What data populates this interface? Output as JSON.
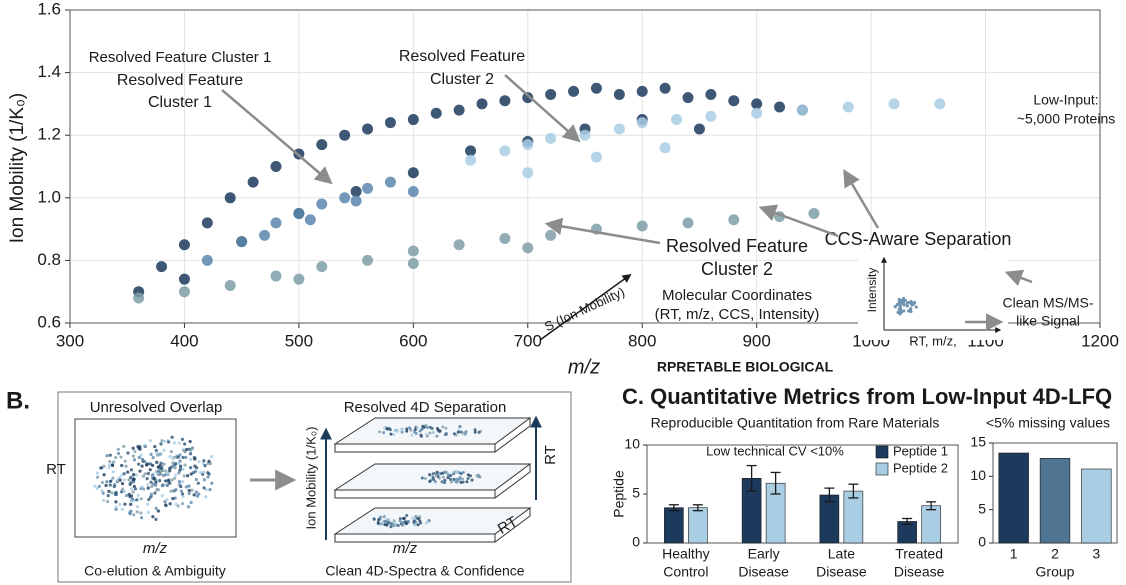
{
  "chart_data": [
    {
      "type": "scatter",
      "xlabel": "m/z",
      "ylabel": "Ion Mobility (1/K₀)",
      "xlim": [
        300,
        1200
      ],
      "ylim": [
        0.6,
        1.6
      ],
      "xticks": [
        300,
        400,
        500,
        600,
        700,
        800,
        900,
        1000,
        1100,
        1200
      ],
      "yticks": [
        0.6,
        0.8,
        {
          "value": 1,
          "label": "1.0"
        },
        1.2,
        1.4,
        1.6
      ],
      "grid": true,
      "series": [
        {
          "color": "#1b3a5c",
          "x": [
            360,
            380,
            400,
            420,
            440,
            460,
            480,
            500,
            520,
            540,
            560,
            580,
            600,
            620,
            640,
            660,
            680,
            700,
            720,
            740,
            760,
            780,
            800,
            820,
            840,
            860,
            880,
            900,
            920,
            940,
            400,
            450,
            500,
            550,
            600,
            650,
            700,
            750,
            800,
            850
          ],
          "y": [
            0.7,
            0.78,
            0.85,
            0.92,
            1.0,
            1.05,
            1.1,
            1.14,
            1.17,
            1.2,
            1.22,
            1.24,
            1.25,
            1.27,
            1.28,
            1.3,
            1.31,
            1.32,
            1.33,
            1.34,
            1.35,
            1.33,
            1.34,
            1.35,
            1.32,
            1.33,
            1.31,
            1.3,
            1.29,
            1.28,
            0.74,
            0.86,
            0.95,
            1.02,
            1.08,
            1.15,
            1.18,
            1.22,
            1.25,
            1.22
          ]
        },
        {
          "color": "#5b86ad",
          "x": [
            420,
            450,
            480,
            500,
            520,
            540,
            560,
            580,
            470,
            510,
            550,
            600
          ],
          "y": [
            0.8,
            0.86,
            0.92,
            0.95,
            0.98,
            1.0,
            1.03,
            1.05,
            0.88,
            0.93,
            0.99,
            1.02
          ]
        },
        {
          "color": "#a9cde3",
          "x": [
            650,
            680,
            700,
            720,
            750,
            780,
            800,
            830,
            860,
            900,
            940,
            980,
            1020,
            1060,
            700,
            760,
            820
          ],
          "y": [
            1.12,
            1.15,
            1.17,
            1.19,
            1.2,
            1.22,
            1.24,
            1.25,
            1.26,
            1.27,
            1.28,
            1.29,
            1.3,
            1.3,
            1.08,
            1.13,
            1.16
          ]
        },
        {
          "color": "#7f9ea8",
          "x": [
            360,
            400,
            440,
            480,
            520,
            560,
            600,
            640,
            680,
            720,
            760,
            800,
            840,
            880,
            920,
            950,
            500,
            600,
            700
          ],
          "y": [
            0.68,
            0.7,
            0.72,
            0.75,
            0.78,
            0.8,
            0.83,
            0.85,
            0.87,
            0.88,
            0.9,
            0.91,
            0.92,
            0.93,
            0.94,
            0.95,
            0.74,
            0.79,
            0.84
          ]
        }
      ],
      "annotations": [
        [
          "Resolved Feature Cluster 1"
        ],
        [
          "Resolved Feature",
          "Cluster 1"
        ],
        [
          "Resolved Feature",
          "Cluster 2"
        ],
        [
          "Low-Input:",
          "~5,000 Proteins"
        ],
        [
          "CCS-Aware Separation"
        ],
        [
          "Resolved Feature",
          "Cluster 2"
        ],
        [
          "Molecular Coordinates",
          "(RT, m/z, CCS, Intensity)"
        ],
        [
          "S (Ion Mobility)"
        ],
        [
          "RPRETABLE BIOLOGICAL"
        ],
        [
          "Clean MS/MS-",
          "like Signal"
        ],
        [
          "Intensity"
        ],
        [
          "RT, m/z,"
        ]
      ]
    },
    {
      "type": "bar",
      "title": "Reproducible Quantitation from Rare Materials",
      "annotation": "Low technical CV <10%",
      "ylabel": "Peptide",
      "categories": [
        [
          "Healthy",
          "Control"
        ],
        [
          "Early",
          "Disease"
        ],
        [
          "Late",
          "Disease"
        ],
        [
          "Treated",
          "Disease"
        ]
      ],
      "ylim": [
        0,
        10
      ],
      "yticks": [
        0,
        5,
        10
      ],
      "series": [
        {
          "name": "Peptide 1",
          "color": "#1b3a5c",
          "values": [
            3.6,
            6.6,
            4.9,
            2.2
          ],
          "errors": [
            0.3,
            1.3,
            0.7,
            0.3
          ]
        },
        {
          "name": "Peptide 2",
          "color": "#a9cde3",
          "values": [
            3.6,
            6.1,
            5.3,
            3.8
          ],
          "errors": [
            0.3,
            1.1,
            0.7,
            0.4
          ]
        }
      ]
    },
    {
      "type": "bar",
      "title": "<5% missing values",
      "xlabel": "Group",
      "categories": [
        "1",
        "2",
        "3"
      ],
      "values": [
        13.5,
        12.7,
        11.1
      ],
      "colors": [
        "#1b3a5c",
        "#4f7593",
        "#a9cde3"
      ],
      "ylim": [
        0,
        15
      ],
      "yticks": [
        0,
        5,
        10,
        15
      ]
    }
  ],
  "panel_b": {
    "label": "B.",
    "left_title": "Unresolved Overlap",
    "left_y": "RT",
    "left_x": "m/z",
    "left_caption": "Co-elution & Ambiguity",
    "right_title": "Resolved 4D Separation",
    "right_y": "Ion Mobility (1/K₀)",
    "right_z": "RT",
    "right_x": "m/z",
    "right_depth": "RT",
    "right_caption": "Clean 4D-Spectra & Confidence"
  },
  "panel_c": {
    "title": "C. Quantitative Metrics from Low-Input 4D-LFQ"
  }
}
